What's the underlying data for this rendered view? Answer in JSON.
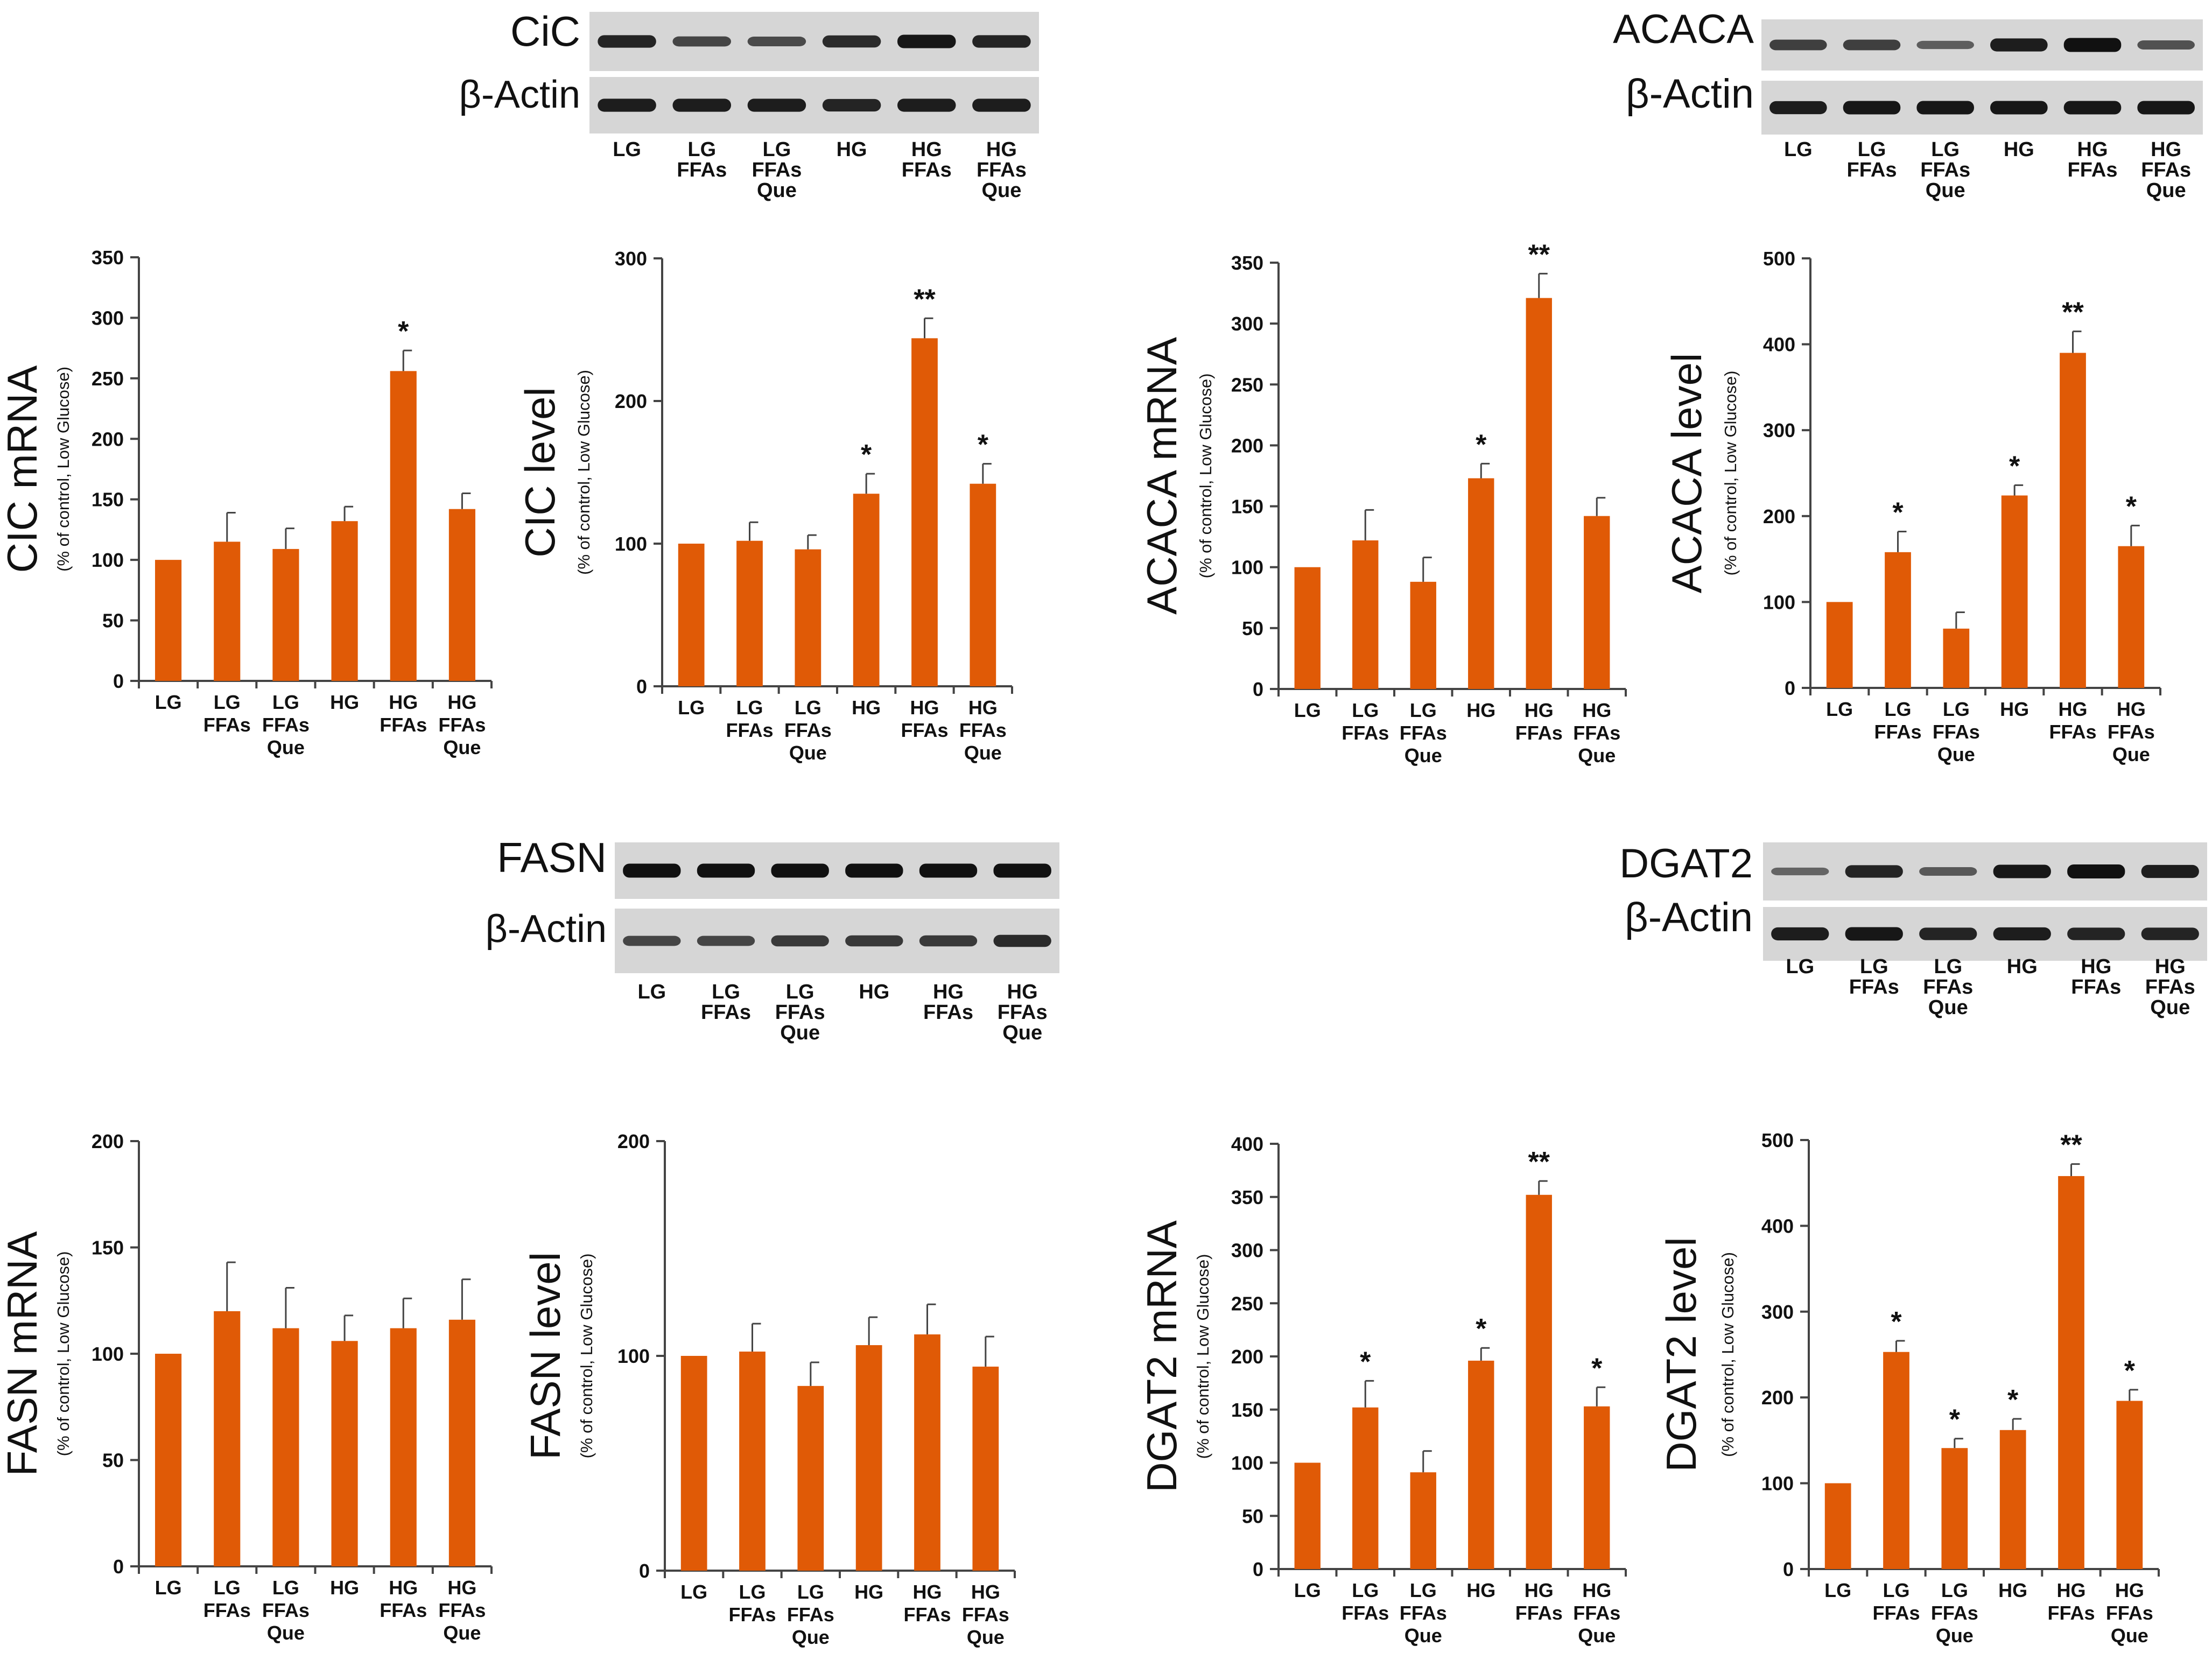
{
  "colors": {
    "bar": "#e05a06",
    "axis": "#444444",
    "text": "#111111",
    "blot_bg": "#d6d6d6",
    "band": "#111111"
  },
  "blots": [
    {
      "target": "CiC",
      "loading": "β-Actin",
      "lanes": [
        [
          "LG"
        ],
        [
          "LG",
          "FFAs"
        ],
        [
          "LG",
          "FFAs",
          "Que"
        ],
        [
          "HG"
        ],
        [
          "HG",
          "FFAs"
        ],
        [
          "HG",
          "FFAs",
          "Que"
        ]
      ],
      "target_intensity": [
        0.85,
        0.6,
        0.55,
        0.8,
        0.95,
        0.85
      ],
      "loading_intensity": [
        0.9,
        0.9,
        0.9,
        0.85,
        0.9,
        0.9
      ]
    },
    {
      "target": "ACACA",
      "loading": "β-Actin",
      "lanes": [
        [
          "LG"
        ],
        [
          "LG",
          "FFAs"
        ],
        [
          "LG",
          "FFAs",
          "Que"
        ],
        [
          "HG"
        ],
        [
          "HG",
          "FFAs"
        ],
        [
          "HG",
          "FFAs",
          "Que"
        ]
      ],
      "target_intensity": [
        0.65,
        0.65,
        0.4,
        0.9,
        1.0,
        0.5
      ],
      "loading_intensity": [
        0.9,
        0.95,
        0.95,
        0.95,
        0.95,
        0.95
      ]
    },
    {
      "target": "FASN",
      "loading": "β-Actin",
      "lanes": [
        [
          "LG"
        ],
        [
          "LG",
          "FFAs"
        ],
        [
          "LG",
          "FFAs",
          "Que"
        ],
        [
          "HG"
        ],
        [
          "HG",
          "FFAs"
        ],
        [
          "HG",
          "FFAs",
          "Que"
        ]
      ],
      "target_intensity": [
        1.0,
        1.0,
        1.0,
        1.0,
        1.0,
        1.0
      ],
      "loading_intensity": [
        0.6,
        0.6,
        0.7,
        0.7,
        0.7,
        0.8
      ]
    },
    {
      "target": "DGAT2",
      "loading": "β-Actin",
      "lanes": [
        [
          "LG"
        ],
        [
          "LG",
          "FFAs"
        ],
        [
          "LG",
          "FFAs",
          "Que"
        ],
        [
          "HG"
        ],
        [
          "HG",
          "FFAs"
        ],
        [
          "HG",
          "FFAs",
          "Que"
        ]
      ],
      "target_intensity": [
        0.35,
        0.85,
        0.45,
        0.95,
        1.0,
        0.9
      ],
      "loading_intensity": [
        0.9,
        0.95,
        0.85,
        0.9,
        0.85,
        0.85
      ]
    }
  ],
  "chart_data": [
    {
      "type": "bar",
      "title": "",
      "ylabel": "CIC mRNA",
      "ysub": "(% of control, Low Glucose)",
      "ylim": [
        0,
        350
      ],
      "yticks": [
        0,
        50,
        100,
        150,
        200,
        250,
        300,
        350
      ],
      "categories": [
        [
          "LG"
        ],
        [
          "LG",
          "FFAs"
        ],
        [
          "LG",
          "FFAs",
          "Que"
        ],
        [
          "HG"
        ],
        [
          "HG",
          "FFAs"
        ],
        [
          "HG",
          "FFAs",
          "Que"
        ]
      ],
      "values": [
        100,
        115,
        109,
        132,
        256,
        142
      ],
      "errors": [
        0,
        24,
        17,
        12,
        17,
        13
      ],
      "significance": [
        "",
        "",
        "",
        "",
        "*",
        ""
      ]
    },
    {
      "type": "bar",
      "title": "",
      "ylabel": "CIC level",
      "ysub": "(% of control, Low Glucose)",
      "ylim": [
        0,
        300
      ],
      "yticks": [
        0,
        100,
        200,
        300
      ],
      "categories": [
        [
          "LG"
        ],
        [
          "LG",
          "FFAs"
        ],
        [
          "LG",
          "FFAs",
          "Que"
        ],
        [
          "HG"
        ],
        [
          "HG",
          "FFAs"
        ],
        [
          "HG",
          "FFAs",
          "Que"
        ]
      ],
      "values": [
        100,
        102,
        96,
        135,
        244,
        142
      ],
      "errors": [
        0,
        13,
        10,
        14,
        14,
        14
      ],
      "significance": [
        "",
        "",
        "",
        "*",
        "**",
        "*"
      ]
    },
    {
      "type": "bar",
      "title": "",
      "ylabel": "ACACA mRNA",
      "ysub": "(% of control, Low Glucose)",
      "ylim": [
        0,
        350
      ],
      "yticks": [
        0,
        50,
        100,
        150,
        200,
        250,
        300,
        350
      ],
      "categories": [
        [
          "LG"
        ],
        [
          "LG",
          "FFAs"
        ],
        [
          "LG",
          "FFAs",
          "Que"
        ],
        [
          "HG"
        ],
        [
          "HG",
          "FFAs"
        ],
        [
          "HG",
          "FFAs",
          "Que"
        ]
      ],
      "values": [
        100,
        122,
        88,
        173,
        321,
        142
      ],
      "errors": [
        0,
        25,
        20,
        12,
        20,
        15
      ],
      "significance": [
        "",
        "",
        "",
        "*",
        "**",
        ""
      ]
    },
    {
      "type": "bar",
      "title": "",
      "ylabel": "ACACA level",
      "ysub": "(% of control, Low Glucose)",
      "ylim": [
        0,
        500
      ],
      "yticks": [
        0,
        100,
        200,
        300,
        400,
        500
      ],
      "categories": [
        [
          "LG"
        ],
        [
          "LG",
          "FFAs"
        ],
        [
          "LG",
          "FFAs",
          "Que"
        ],
        [
          "HG"
        ],
        [
          "HG",
          "FFAs"
        ],
        [
          "HG",
          "FFAs",
          "Que"
        ]
      ],
      "values": [
        100,
        158,
        69,
        224,
        390,
        165
      ],
      "errors": [
        0,
        24,
        19,
        12,
        25,
        24
      ],
      "significance": [
        "",
        "*",
        "",
        "*",
        "**",
        "*"
      ]
    },
    {
      "type": "bar",
      "title": "",
      "ylabel": "FASN mRNA",
      "ysub": "(% of control, Low Glucose)",
      "ylim": [
        0,
        200
      ],
      "yticks": [
        0,
        50,
        100,
        150,
        200
      ],
      "categories": [
        [
          "LG"
        ],
        [
          "LG",
          "FFAs"
        ],
        [
          "LG",
          "FFAs",
          "Que"
        ],
        [
          "HG"
        ],
        [
          "HG",
          "FFAs"
        ],
        [
          "HG",
          "FFAs",
          "Que"
        ]
      ],
      "values": [
        100,
        120,
        112,
        106,
        112,
        116
      ],
      "errors": [
        0,
        23,
        19,
        12,
        14,
        19
      ],
      "significance": [
        "",
        "",
        "",
        "",
        "",
        ""
      ]
    },
    {
      "type": "bar",
      "title": "",
      "ylabel": "FASN level",
      "ysub": "(% of control, Low Glucose)",
      "ylim": [
        0,
        200
      ],
      "yticks": [
        0,
        100,
        200
      ],
      "categories": [
        [
          "LG"
        ],
        [
          "LG",
          "FFAs"
        ],
        [
          "LG",
          "FFAs",
          "Que"
        ],
        [
          "HG"
        ],
        [
          "HG",
          "FFAs"
        ],
        [
          "HG",
          "FFAs",
          "Que"
        ]
      ],
      "values": [
        100,
        102,
        86,
        105,
        110,
        95
      ],
      "errors": [
        0,
        13,
        11,
        13,
        14,
        14
      ],
      "significance": [
        "",
        "",
        "",
        "",
        "",
        ""
      ]
    },
    {
      "type": "bar",
      "title": "",
      "ylabel": "DGAT2 mRNA",
      "ysub": "(% of control, Low Glucose)",
      "ylim": [
        0,
        400
      ],
      "yticks": [
        0,
        50,
        100,
        150,
        200,
        250,
        300,
        350,
        400
      ],
      "categories": [
        [
          "LG"
        ],
        [
          "LG",
          "FFAs"
        ],
        [
          "LG",
          "FFAs",
          "Que"
        ],
        [
          "HG"
        ],
        [
          "HG",
          "FFAs"
        ],
        [
          "HG",
          "FFAs",
          "Que"
        ]
      ],
      "values": [
        100,
        152,
        91,
        196,
        352,
        153
      ],
      "errors": [
        0,
        25,
        20,
        12,
        13,
        18
      ],
      "significance": [
        "",
        "*",
        "",
        "*",
        "**",
        "*"
      ]
    },
    {
      "type": "bar",
      "title": "",
      "ylabel": "DGAT2 level",
      "ysub": "(% of control, Low Glucose)",
      "ylim": [
        0,
        500
      ],
      "yticks": [
        0,
        100,
        200,
        300,
        400,
        500
      ],
      "categories": [
        [
          "LG"
        ],
        [
          "LG",
          "FFAs"
        ],
        [
          "LG",
          "FFAs",
          "Que"
        ],
        [
          "HG"
        ],
        [
          "HG",
          "FFAs"
        ],
        [
          "HG",
          "FFAs",
          "Que"
        ]
      ],
      "values": [
        100,
        253,
        141,
        162,
        458,
        196
      ],
      "errors": [
        0,
        13,
        11,
        13,
        14,
        13
      ],
      "significance": [
        "",
        "*",
        "*",
        "*",
        "**",
        "*"
      ]
    }
  ]
}
